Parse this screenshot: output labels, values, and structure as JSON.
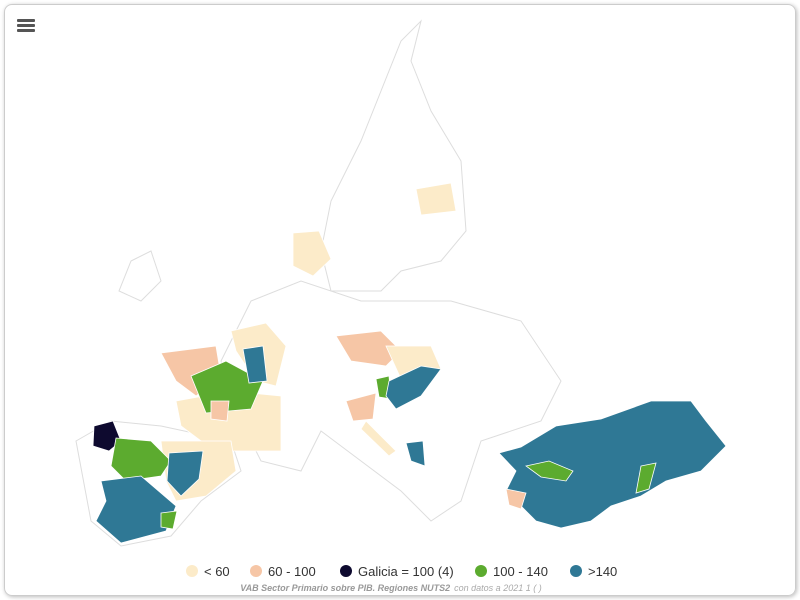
{
  "legend": {
    "items": [
      {
        "name": "< 60",
        "color": "#fcebc9"
      },
      {
        "name": "60 - 100",
        "color": "#f6c6a6"
      },
      {
        "name": "Galicia = 100 (4)",
        "color": "#0e0a2f"
      },
      {
        "name": "100 - 140",
        "color": "#5cab2f"
      },
      {
        "name": ">140",
        "color": "#2f7895"
      }
    ]
  },
  "caption": {
    "title": "VAB Sector Primario sobre PIB. Regiones NUTS2",
    "note": "con datos a 2021 1 ( )"
  }
}
